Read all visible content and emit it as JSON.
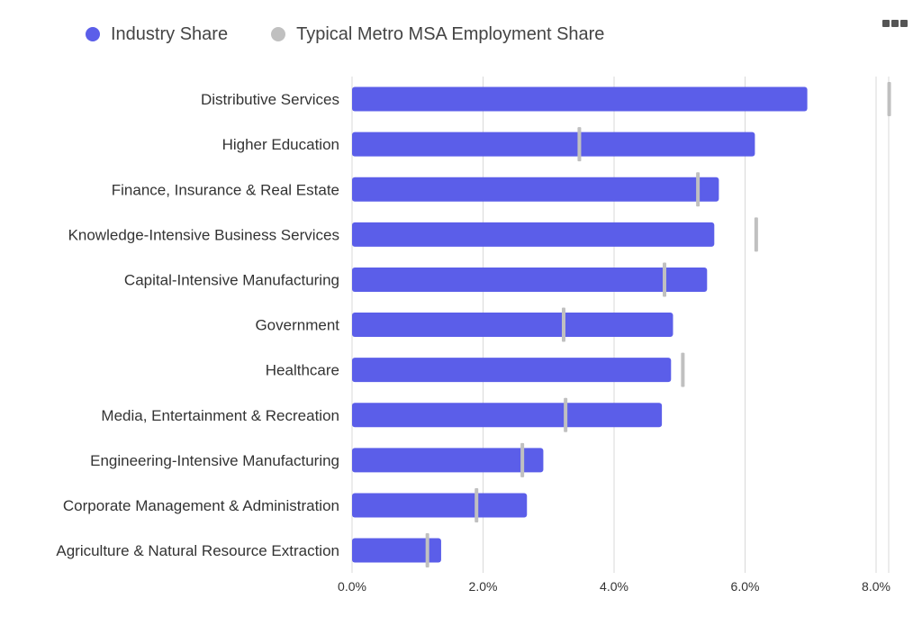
{
  "legend": {
    "industry_label": "Industry Share",
    "metro_label": "Typical Metro MSA Employment Share"
  },
  "menu_icon": "ellipsis-menu-icon",
  "colors": {
    "industry_bar": "#5b5ee9",
    "metro_marker": "#c0c0c0",
    "gridline": "#d9d9d9"
  },
  "chart_data": {
    "type": "bar",
    "orientation": "horizontal",
    "categories": [
      "Distributive Services",
      "Higher Education",
      "Finance, Insurance & Real Estate",
      "Knowledge-Intensive Business Services",
      "Capital-Intensive Manufacturing",
      "Government",
      "Healthcare",
      "Media, Entertainment & Recreation",
      "Engineering-Intensive Manufacturing",
      "Corporate Management & Administration",
      "Agriculture & Natural Resource Extraction"
    ],
    "series": [
      {
        "name": "Industry Share",
        "type": "bar",
        "values": [
          6.95,
          6.15,
          5.6,
          5.53,
          5.42,
          4.9,
          4.87,
          4.73,
          2.92,
          2.67,
          1.36
        ]
      },
      {
        "name": "Typical Metro MSA Employment Share",
        "type": "marker",
        "values": [
          8.2,
          3.47,
          5.28,
          6.17,
          4.77,
          3.23,
          5.05,
          3.26,
          2.6,
          1.9,
          1.15
        ]
      }
    ],
    "x_ticks": [
      "0.0%",
      "2.0%",
      "4.0%",
      "6.0%",
      "8.0%"
    ],
    "xlim": [
      0,
      8.2
    ],
    "grid": true,
    "legend_position": "top-left"
  }
}
